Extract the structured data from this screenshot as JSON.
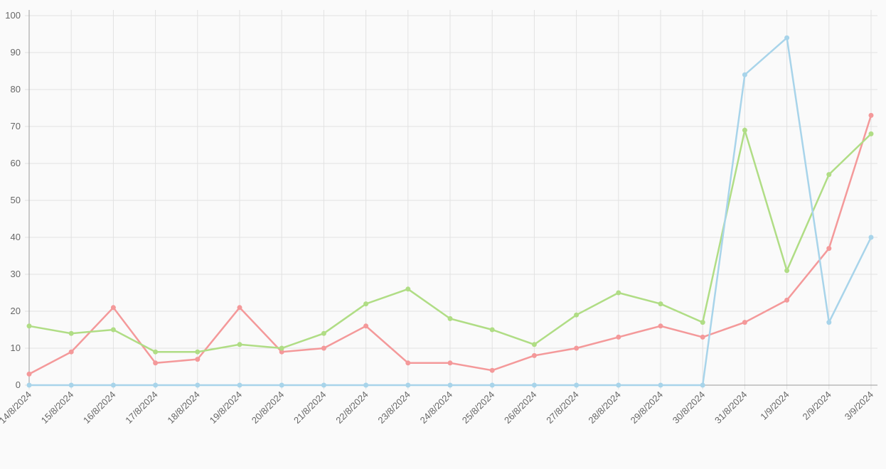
{
  "chart_data": {
    "type": "line",
    "categories": [
      "14/8/2024",
      "15/8/2024",
      "16/8/2024",
      "17/8/2024",
      "18/8/2024",
      "19/8/2024",
      "20/8/2024",
      "21/8/2024",
      "22/8/2024",
      "23/8/2024",
      "24/8/2024",
      "25/8/2024",
      "26/8/2024",
      "27/8/2024",
      "28/8/2024",
      "29/8/2024",
      "30/8/2024",
      "31/8/2024",
      "1/9/2024",
      "2/9/2024",
      "3/9/2024"
    ],
    "series": [
      {
        "color": "#f4999a",
        "values": [
          3,
          9,
          21,
          6,
          7,
          21,
          9,
          10,
          16,
          6,
          6,
          4,
          8,
          10,
          13,
          16,
          13,
          17,
          23,
          37,
          73
        ]
      },
      {
        "color": "#b0dd85",
        "values": [
          16,
          14,
          15,
          9,
          9,
          11,
          10,
          14,
          22,
          26,
          18,
          15,
          11,
          19,
          25,
          22,
          17,
          69,
          31,
          57,
          68
        ]
      },
      {
        "color": "#a8d4ea",
        "values": [
          0,
          0,
          0,
          0,
          0,
          0,
          0,
          0,
          0,
          0,
          0,
          0,
          0,
          0,
          0,
          0,
          0,
          84,
          94,
          17,
          40
        ]
      }
    ],
    "ylim": [
      0,
      100
    ],
    "yticks": [
      0,
      10,
      20,
      30,
      40,
      50,
      60,
      70,
      80,
      90,
      100
    ],
    "grid": true
  }
}
